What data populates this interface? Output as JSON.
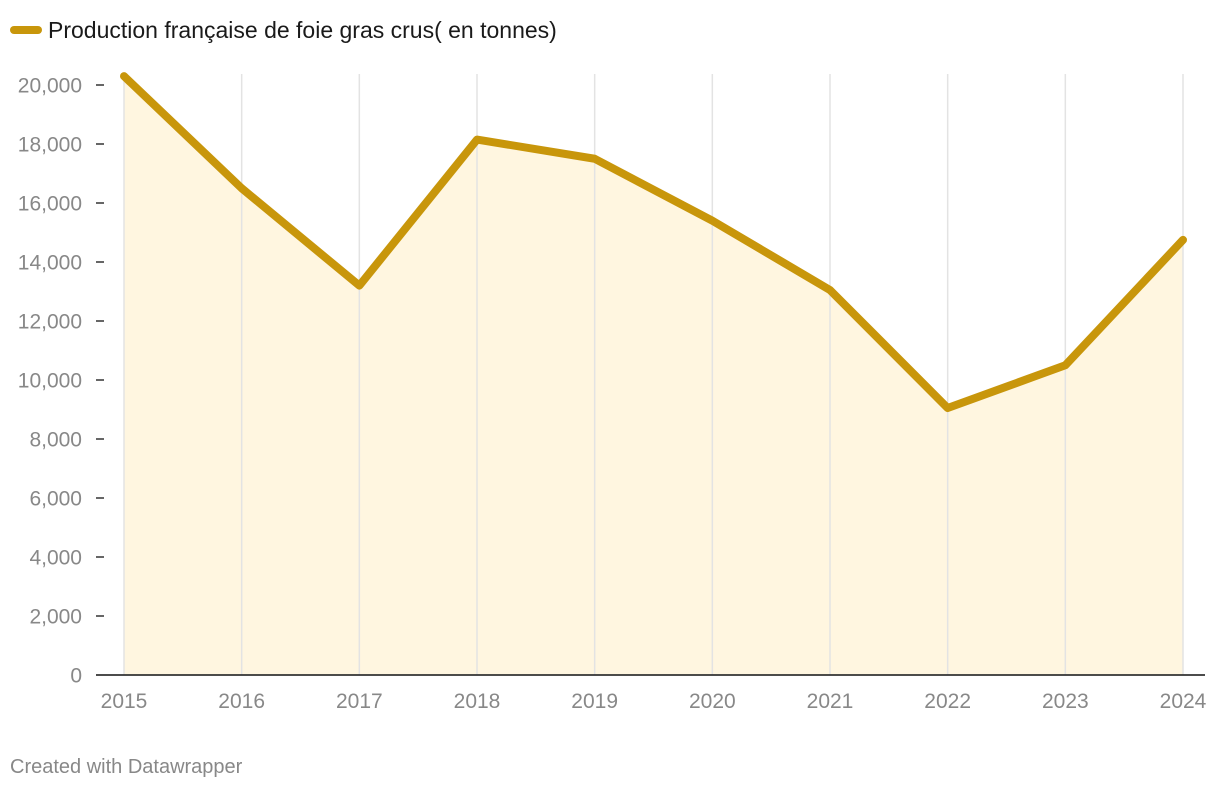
{
  "chart_data": {
    "type": "area",
    "title": "",
    "xlabel": "",
    "ylabel": "",
    "x": [
      "2015",
      "2016",
      "2017",
      "2018",
      "2019",
      "2020",
      "2021",
      "2022",
      "2023",
      "2024"
    ],
    "series": [
      {
        "name": "Production française de foie gras crus( en tonnes)",
        "values": [
          20300,
          16500,
          13200,
          18150,
          17500,
          15400,
          13050,
          9050,
          10500,
          14750
        ],
        "color": "#c8960b",
        "fill": "#fff6e0"
      }
    ],
    "yticks": [
      0,
      2000,
      4000,
      6000,
      8000,
      10000,
      12000,
      14000,
      16000,
      18000,
      20000
    ],
    "ytick_labels": [
      "0",
      "2,000",
      "4,000",
      "6,000",
      "8,000",
      "10,000",
      "12,000",
      "14,000",
      "16,000",
      "18,000",
      "20,000"
    ],
    "ylim": [
      0,
      20000
    ],
    "grid": "vertical",
    "legend": "top-left"
  },
  "footer": "Created with Datawrapper"
}
